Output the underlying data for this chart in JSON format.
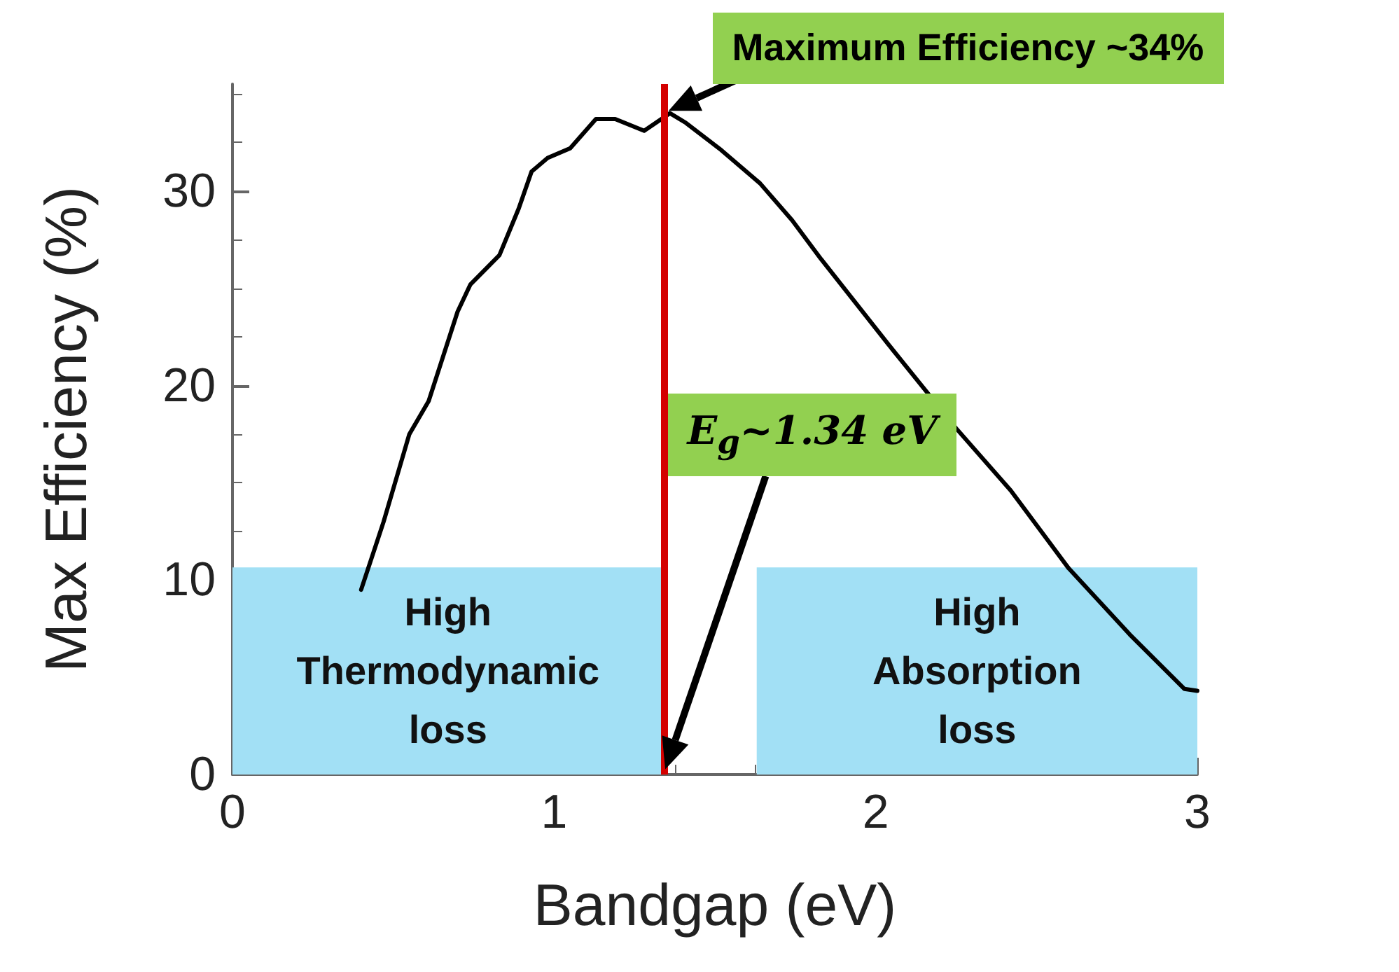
{
  "chart_data": {
    "type": "line",
    "xlabel": "Bandgap (eV)",
    "ylabel": "Max Efficiency (%)",
    "x": [
      0.4,
      0.47,
      0.55,
      0.61,
      0.7,
      0.74,
      0.83,
      0.89,
      0.93,
      0.98,
      1.05,
      1.13,
      1.19,
      1.28,
      1.36,
      1.41,
      1.52,
      1.64,
      1.74,
      1.83,
      2.04,
      2.25,
      2.42,
      2.6,
      2.79,
      2.96,
      3.0
    ],
    "series": [
      {
        "color": "#000000",
        "values": [
          9.5,
          13.0,
          17.5,
          19.2,
          23.8,
          25.2,
          26.7,
          29.1,
          31.0,
          31.7,
          32.2,
          33.7,
          33.7,
          33.1,
          34.0,
          33.5,
          32.1,
          30.4,
          28.5,
          26.5,
          22.1,
          17.8,
          14.6,
          10.6,
          7.2,
          4.4,
          4.3
        ]
      }
    ],
    "xlim": [
      0,
      3
    ],
    "xticks": [
      0,
      1,
      2,
      3
    ],
    "ylim": [
      0,
      35.5
    ],
    "yticks": [
      0,
      10,
      20,
      30
    ],
    "grid": false,
    "marker": "none",
    "line_style": "solid",
    "ref_lines": [
      {
        "axis": "x",
        "value": 1.34,
        "color": "#d40000"
      }
    ],
    "bands": [
      {
        "axis": "x",
        "from": 0,
        "to": 1.34,
        "label": "High\nThermodynamic\nloss",
        "color": "#a2e0f5"
      },
      {
        "axis": "x",
        "from": 1.63,
        "to": 3,
        "label": "High\nAbsorption\nloss",
        "color": "#a2e0f5"
      }
    ],
    "annotations": [
      {
        "text": "Maximum Efficiency ~34%",
        "x": 1.34,
        "y": 34
      },
      "E$_{g}$~1.34 eV"
    ]
  }
}
